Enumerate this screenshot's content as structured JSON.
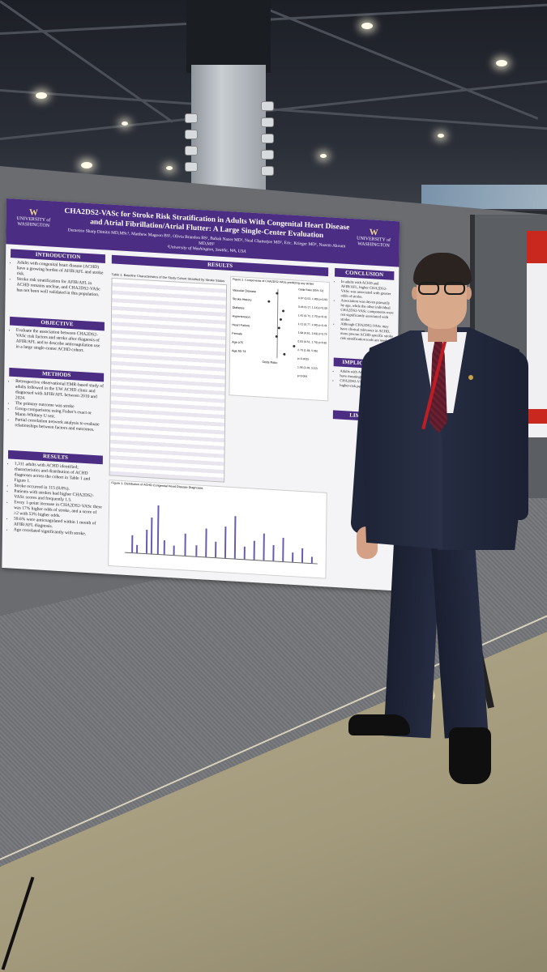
{
  "poster": {
    "logo_letter": "W",
    "logo_text": "UNIVERSITY of WASHINGTON",
    "title": "CHA2DS2-VASc for Stroke Risk Stratification in Adults With Congenital Heart Disease and Atrial Fibrillation/Atrial Flutter: A Large Single-Center Evaluation",
    "authors": "Demetrio Sharp Dimitri MD,MSc¹, Matthew Magoon BS¹, Olivia Brandon BS¹, Babak Nazer MD¹, Neal Chatterjee MD¹, Eric. Krieger MD¹, Nazem Akoum MD,MS¹",
    "affiliation": "¹University of Washington, Seattle, WA, USA",
    "sections": {
      "introduction": "INTRODUCTION",
      "objective": "OBJECTIVE",
      "methods": "METHODS",
      "results_left": "RESULTS",
      "results_center": "RESULTS",
      "conclusion": "CONCLUSION",
      "implications": "IMPLICATIONS",
      "limitations": "LIMITATI"
    },
    "intro_bullets": [
      "Adults with congenital heart disease (ACHD) have a growing burden of AFIB/AFL and stroke risk.",
      "Stroke risk stratification for AFIB/AFL in ACHD remains unclear, and CHA2DS2-VASc has not been well validated in this population."
    ],
    "objective_bullets": [
      "Evaluate the association between CHA2DS2-VASc risk factors and stroke after diagnosis of AFIB/AFL and to describe anticoagulation use in a large single-center ACHD cohort."
    ],
    "methods_bullets": [
      "Retrospective observational EMR-based study of adults followed in the UW ACHD clinic and diagnosed with AFIB/AFL between 2010 and 2024.",
      "The primary outcome was stroke",
      "Group comparisons using Fisher's exact or Mann-Whitney U test.",
      "Partial correlation network analysis to evaluate relationships between factors and outcomes."
    ],
    "results_bullets": [
      "1,311 adults with ACHD identified; characteristics and distribution of ACHD diagnoses across the cohort in Table 1 and Figure 1.",
      "Stroke occurred in 115 (8.8%).",
      "Patients with strokes had higher CHA2DS2-VASc scores and frequently 1.5.",
      "Every 1-point increase in CHA2DS2-VASc there was 17% higher odds of stroke, and a score of ≥2 with 53% higher odds.",
      "59.6% were anticoagulated within 1 month of AFIB/AFL diagnosis.",
      "Age correlated significantly with stroke."
    ],
    "table_title": "Table 1. Baseline Characteristics of the Study Cohort Stratified by Stroke Status",
    "figure2_title": "Figure 2. Components of CHA2DS2-VASc predicting any stroke",
    "figure1_title": "Figure 1. Distribution of ACHD Congenital Heart Disease Diagnoses",
    "odds_header": "Odds Ratio (95% CI)",
    "odds_ratios": [
      "0.97 (0.52, 1.80) p=0.93",
      "0.44 (0.17, 1.14) p=0.09",
      "1.42 (0.72, 2.79) p=0.31",
      "1.21 (0.77, 1.90) p=0.41",
      "1.08 (0.61, 1.93) p=0.79",
      "0.93 (0.51, 1.70) p=0.82",
      "2.73 (1.48, 5.06) p=0.0015",
      "1.06 (1.28, 3.10) p=0.004"
    ],
    "forest_labels": [
      "Vascular Disease",
      "Stroke History",
      "Diabetes",
      "Hypertension",
      "Heart Failure",
      "Female",
      "Age ≥75",
      "Age 65-74"
    ],
    "axis_label": "Odds Ratio",
    "conclusion_bullets": [
      "In adults with ACHD and AFIB/AFL, higher CHA2DS2-VASc was associated with greater odds of stroke.",
      "Association was driven primarily by age, while the other individual CHA2DS2-VASc components were not significantly associated with stroke.",
      "Although CHA2DS2-VASc may have clinical relevance in ACHD, more precise ACHD-specific stroke risk stratification tools are needed."
    ],
    "implications_bullets": [
      "Adults with ACHD and AFIB/AFL have meaningful stroke risk.",
      "CHA2DS2-VASc may help identify higher-risk patients."
    ]
  },
  "colors": {
    "uw_purple": "#4b2e83",
    "uw_gold": "#f0d890",
    "tie": "#5a1a2a",
    "lanyard": "#c01c24",
    "suit": "#1e2436"
  }
}
